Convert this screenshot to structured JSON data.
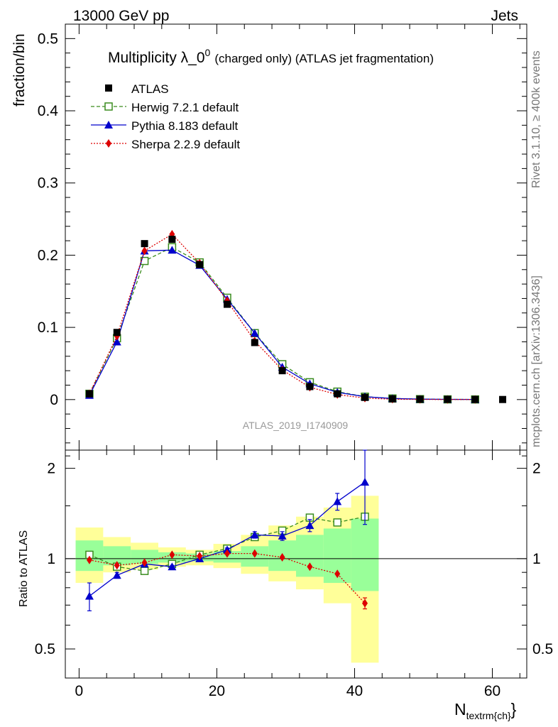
{
  "header": {
    "left_label": "13000 GeV pp",
    "right_label": "Jets"
  },
  "side_labels": {
    "rivet": "Rivet 3.1.10, ≥ 400k events",
    "mcplots": "mcplots.cern.ch [arXiv:1306.3436]"
  },
  "watermark": "ATLAS_2019_I1740909",
  "chart_data": [
    {
      "id": "main",
      "type": "line",
      "title": "Multiplicity λ_0",
      "title_superscript": "0",
      "title_suffix": "(charged only) (ATLAS jet fragmentation)",
      "ylabel": "fraction/bin",
      "xlabel": "",
      "xlim": [
        -2,
        65
      ],
      "ylim": [
        -0.07,
        0.52
      ],
      "y_ticks": [
        0,
        0.1,
        0.2,
        0.3,
        0.4,
        0.5
      ],
      "y_tick_labels": [
        "0",
        "0.1",
        "0.2",
        "0.3",
        "0.4",
        "0.5"
      ],
      "grid": false,
      "legend_position": "top-left",
      "x": [
        1.5,
        5.5,
        9.5,
        13.5,
        17.5,
        21.5,
        25.5,
        29.5,
        33.5,
        37.5,
        41.5,
        45.5,
        49.5,
        53.5,
        57.5,
        61.5
      ],
      "series": [
        {
          "name": "ATLAS",
          "style": "data",
          "color": "#000000",
          "values": [
            0.008,
            0.093,
            0.216,
            0.222,
            0.187,
            0.132,
            0.079,
            0.04,
            0.018,
            0.008,
            0.003,
            0.001,
            0.0005,
            0.0003,
            0.0002,
            0.0001
          ]
        },
        {
          "name": "Herwig 7.2.1 default",
          "style": "dashed-open-square",
          "color": "#3a8c1f",
          "values": [
            0.008,
            0.085,
            0.192,
            0.211,
            0.19,
            0.141,
            0.092,
            0.049,
            0.024,
            0.011,
            0.004,
            0.0015,
            0.0006,
            0.0003,
            0.0002,
            null
          ]
        },
        {
          "name": "Pythia 8.183 default",
          "style": "solid-triangle",
          "color": "#0000cc",
          "values": [
            0.006,
            0.08,
            0.206,
            0.207,
            0.186,
            0.139,
            0.092,
            0.045,
            0.022,
            0.01,
            0.004,
            0.0015,
            0.0006,
            0.0003,
            0.0002,
            null
          ]
        },
        {
          "name": "Sherpa 2.2.9 default",
          "style": "dotted-diamond",
          "color": "#dd0000",
          "values": [
            0.008,
            0.088,
            0.206,
            0.229,
            0.189,
            0.137,
            0.081,
            0.041,
            0.017,
            0.007,
            0.002,
            0.0005,
            0.0002,
            0.0001,
            0.0001,
            null
          ]
        }
      ]
    },
    {
      "id": "ratio",
      "type": "line",
      "ylabel": "Ratio to ATLAS",
      "xlabel": "N",
      "xlabel_subscript": "textrm{ch}",
      "xlim": [
        -2,
        65
      ],
      "ylim": [
        0.4,
        2.3
      ],
      "y_ticks": [
        0.5,
        1,
        2
      ],
      "y_tick_labels": [
        "0.5",
        "1",
        "2"
      ],
      "x_ticks": [
        0,
        20,
        40,
        60
      ],
      "x_tick_labels": [
        "0",
        "20",
        "40",
        "60"
      ],
      "reference_line": 1,
      "grid": false,
      "bins": [
        [
          -0.5,
          3.5
        ],
        [
          3.5,
          7.5
        ],
        [
          7.5,
          11.5
        ],
        [
          11.5,
          15.5
        ],
        [
          15.5,
          19.5
        ],
        [
          19.5,
          23.5
        ],
        [
          23.5,
          27.5
        ],
        [
          27.5,
          31.5
        ],
        [
          31.5,
          35.5
        ],
        [
          35.5,
          39.5
        ],
        [
          39.5,
          43.5
        ]
      ],
      "band_outer": {
        "color": "#ffff99",
        "low": [
          0.83,
          0.9,
          0.92,
          0.94,
          0.95,
          0.93,
          0.89,
          0.84,
          0.79,
          0.71,
          0.45
        ],
        "high": [
          1.27,
          1.18,
          1.13,
          1.09,
          1.07,
          1.12,
          1.2,
          1.29,
          1.38,
          1.48,
          1.62
        ]
      },
      "band_inner": {
        "color": "#99ff99",
        "low": [
          0.91,
          0.95,
          0.96,
          0.97,
          0.98,
          0.97,
          0.94,
          0.91,
          0.87,
          0.83,
          0.78
        ],
        "high": [
          1.15,
          1.1,
          1.07,
          1.05,
          1.04,
          1.06,
          1.1,
          1.15,
          1.2,
          1.26,
          1.36
        ]
      },
      "x": [
        1.5,
        5.5,
        9.5,
        13.5,
        17.5,
        21.5,
        25.5,
        29.5,
        33.5,
        37.5,
        41.5
      ],
      "series": [
        {
          "name": "Herwig 7.2.1 default",
          "style": "dashed-open-square",
          "color": "#3a8c1f",
          "values": [
            1.03,
            0.94,
            0.91,
            0.96,
            1.03,
            1.08,
            1.18,
            1.24,
            1.37,
            1.32,
            1.38
          ],
          "errors": [
            0,
            0,
            0,
            0,
            0,
            0,
            0,
            0,
            0,
            0,
            0
          ]
        },
        {
          "name": "Pythia 8.183 default",
          "style": "solid-triangle",
          "color": "#0000cc",
          "values": [
            0.75,
            0.88,
            0.96,
            0.94,
            1.0,
            1.07,
            1.2,
            1.19,
            1.29,
            1.55,
            1.8
          ],
          "errors": [
            0.08,
            0.02,
            0.01,
            0.01,
            0.01,
            0.015,
            0.03,
            0.04,
            0.06,
            0.1,
            0.5
          ]
        },
        {
          "name": "Sherpa 2.2.9 default",
          "style": "dotted-diamond",
          "color": "#dd0000",
          "values": [
            0.99,
            0.95,
            0.97,
            1.03,
            1.02,
            1.04,
            1.04,
            1.01,
            0.94,
            0.89,
            0.71
          ],
          "errors": [
            0,
            0,
            0,
            0,
            0,
            0,
            0,
            0,
            0,
            0,
            0.03
          ]
        }
      ]
    }
  ]
}
